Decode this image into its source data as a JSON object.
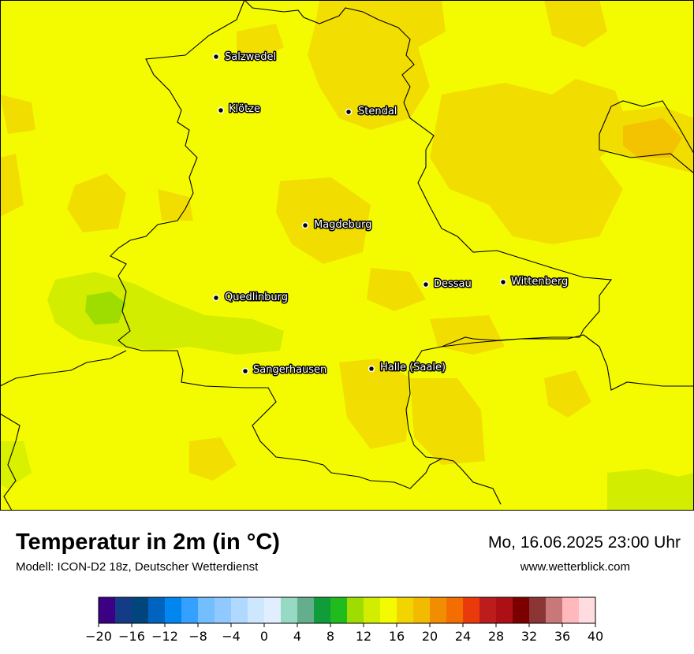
{
  "title": "Temperatur in 2m (in °C)",
  "subtitle": "Modell: ICON-D2 18z, Deutscher Wetterdienst",
  "datetime": "Mo, 16.06.2025 23:00 Uhr",
  "website": "www.wetterblick.com",
  "cities": [
    {
      "name": "Salzwedel"
    },
    {
      "name": "Klötze"
    },
    {
      "name": "Stendal"
    },
    {
      "name": "Magdeburg"
    },
    {
      "name": "Dessau"
    },
    {
      "name": "Wittenberg"
    },
    {
      "name": "Quedlinburg"
    },
    {
      "name": "Sangerhausen"
    },
    {
      "name": "Halle (Saale)"
    }
  ],
  "legend": {
    "colors": [
      "#3b0083",
      "#143b86",
      "#00457c",
      "#0063c0",
      "#0086ee",
      "#34a0ff",
      "#73beff",
      "#8fc9ff",
      "#b0d9ff",
      "#cde7ff",
      "#e1eeff",
      "#97dac3",
      "#64ad8d",
      "#0f9c3b",
      "#20bc1e",
      "#9fdd00",
      "#d2ed00",
      "#f4fb00",
      "#f2d400",
      "#f3bb00",
      "#f28c00",
      "#f36d00",
      "#ea3a0b",
      "#bd1c1c",
      "#ad1014",
      "#7d0000",
      "#8c3535",
      "#c87879",
      "#ffb9bd",
      "#ffdcdf"
    ],
    "ticks": [
      "−20",
      "−16",
      "−12",
      "−8",
      "−4",
      "0",
      "4",
      "8",
      "12",
      "16",
      "20",
      "24",
      "28",
      "32",
      "36",
      "40"
    ]
  }
}
